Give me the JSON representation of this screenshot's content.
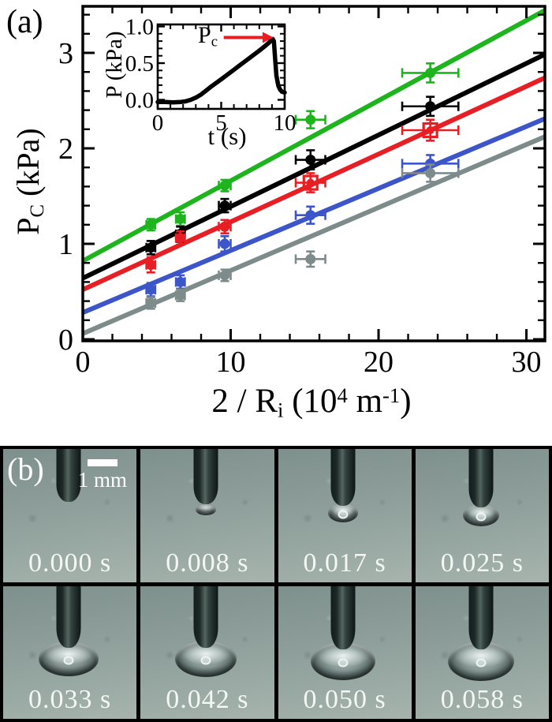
{
  "panel_a": {
    "label": "(a)",
    "ylabel": {
      "p1": "P",
      "sub": "C",
      "p2": " (kPa)"
    },
    "xlabel": {
      "p1": "2 / R",
      "sub": "i",
      "p2": " (10",
      "sup1": "4",
      "p3": " m",
      "sup2": "-1",
      "p4": ")"
    },
    "inset_ylabel": "P (kPa)",
    "inset_xlabel": "t (s)",
    "pc_annotation": {
      "p1": "P",
      "sub": "c"
    }
  },
  "chart_data": [
    {
      "type": "scatter",
      "title": "",
      "xlabel": "2 / R_i (10^4 m^-1)",
      "ylabel": "P_C (kPa)",
      "xlim": [
        0,
        31.25
      ],
      "ylim": [
        0,
        3.49
      ],
      "grid": false,
      "legend": "none",
      "x_major_ticks": [
        {
          "v": 0,
          "label": "0"
        },
        {
          "v": 10,
          "label": "10"
        },
        {
          "v": 20,
          "label": "20"
        },
        {
          "v": 30,
          "label": "30"
        }
      ],
      "x_minor_step": 2,
      "y_major_ticks": [
        {
          "v": 0,
          "label": "0"
        },
        {
          "v": 1,
          "label": "1"
        },
        {
          "v": 2,
          "label": "2"
        },
        {
          "v": 3,
          "label": "3"
        }
      ],
      "y_minor_step": 0.2,
      "x": [
        4.6,
        6.6,
        9.6,
        15.4,
        23.5
      ],
      "xerr": [
        0.3,
        0.3,
        0.4,
        1.0,
        1.9
      ],
      "series": [
        {
          "name": "green",
          "color": "#1db41d",
          "marker": "circle",
          "y": [
            1.2,
            1.26,
            1.61,
            2.3,
            2.79
          ],
          "yerr": [
            0.06,
            0.07,
            0.06,
            0.09,
            0.1
          ],
          "fit": {
            "slope": 0.084,
            "intercept": 0.82
          }
        },
        {
          "name": "black",
          "color": "#000000",
          "marker": "circle",
          "y": [
            0.96,
            1.1,
            1.4,
            1.88,
            2.44
          ],
          "yerr": [
            0.07,
            0.08,
            0.07,
            0.1,
            0.1
          ],
          "fit": {
            "slope": 0.075,
            "intercept": 0.64
          }
        },
        {
          "name": "red",
          "color": "#e81e25",
          "marker": "circle+opensquare",
          "open_square_idx": [
            3,
            4
          ],
          "y": [
            0.78,
            1.06,
            1.18,
            1.64,
            2.19
          ],
          "yerr": [
            0.08,
            0.07,
            0.07,
            0.1,
            0.11
          ],
          "fit": {
            "slope": 0.071,
            "intercept": 0.52
          }
        },
        {
          "name": "blue",
          "color": "#3c55c8",
          "marker": "circle",
          "y": [
            0.52,
            0.6,
            1.0,
            1.3,
            1.84
          ],
          "yerr": [
            0.07,
            0.07,
            0.08,
            0.09,
            0.09
          ],
          "fit": {
            "slope": 0.065,
            "intercept": 0.28
          }
        },
        {
          "name": "gray",
          "color": "#7e8b8b",
          "marker": "circle",
          "y": [
            0.38,
            0.46,
            0.67,
            0.84,
            1.74
          ],
          "yerr": [
            0.06,
            0.06,
            0.06,
            0.08,
            0.09
          ],
          "fit": {
            "slope": 0.066,
            "intercept": 0.06
          }
        }
      ]
    },
    {
      "type": "line",
      "title": "inset",
      "xlabel": "t (s)",
      "ylabel": "P (kPa)",
      "xlim": [
        0,
        10
      ],
      "ylim": [
        -0.12,
        1.03
      ],
      "x_major_ticks": [
        {
          "v": 0,
          "label": "0"
        },
        {
          "v": 5,
          "label": "5"
        },
        {
          "v": 10,
          "label": "10"
        }
      ],
      "x_minor_step": 1,
      "y_major_ticks": [
        {
          "v": 0,
          "label": "0.0"
        },
        {
          "v": 0.5,
          "label": "0.5"
        },
        {
          "v": 1,
          "label": "1.0"
        }
      ],
      "y_minor_step": 0.1,
      "line_color": "#000000",
      "curve": [
        [
          0,
          -0.03
        ],
        [
          0.6,
          -0.03
        ],
        [
          1.2,
          -0.035
        ],
        [
          1.8,
          -0.03
        ],
        [
          2.2,
          -0.02
        ],
        [
          2.6,
          0.0
        ],
        [
          3.0,
          0.03
        ],
        [
          3.4,
          0.07
        ],
        [
          3.8,
          0.125
        ],
        [
          4.2,
          0.18
        ],
        [
          4.6,
          0.23
        ],
        [
          5.0,
          0.28
        ],
        [
          5.5,
          0.345
        ],
        [
          6.0,
          0.41
        ],
        [
          6.5,
          0.475
        ],
        [
          7.0,
          0.54
        ],
        [
          7.5,
          0.605
        ],
        [
          8.0,
          0.67
        ],
        [
          8.5,
          0.74
        ],
        [
          8.8,
          0.785
        ],
        [
          9.05,
          0.83
        ],
        [
          9.15,
          0.8
        ],
        [
          9.25,
          0.56
        ],
        [
          9.35,
          0.33
        ],
        [
          9.5,
          0.19
        ],
        [
          9.65,
          0.135
        ],
        [
          9.8,
          0.11
        ],
        [
          10,
          0.1
        ]
      ],
      "annotation": {
        "text": "P_c",
        "arrow_color": "#e81e25",
        "arrow_y": 0.85,
        "arrow_x_start": 5.2,
        "arrow_x_end": 9.0,
        "peak_value": 0.83,
        "peak_t": 9.05
      }
    }
  ],
  "panel_b": {
    "label": "(b)",
    "scalebar_label": "1 mm",
    "frames": [
      {
        "time": "0.000 s",
        "needle_pct": 42,
        "bubble_rx": 0,
        "bubble_ry": 0
      },
      {
        "time": "0.008 s",
        "needle_pct": 44,
        "bubble_rx": 13,
        "bubble_ry": 7
      },
      {
        "time": "0.017 s",
        "needle_pct": 45,
        "bubble_rx": 19,
        "bubble_ry": 12
      },
      {
        "time": "0.025 s",
        "needle_pct": 46,
        "bubble_rx": 23,
        "bubble_ry": 14
      },
      {
        "time": "0.033 s",
        "needle_pct": 49,
        "bubble_rx": 38,
        "bubble_ry": 22
      },
      {
        "time": "0.042 s",
        "needle_pct": 49,
        "bubble_rx": 39,
        "bubble_ry": 23
      },
      {
        "time": "0.050 s",
        "needle_pct": 50,
        "bubble_rx": 41,
        "bubble_ry": 24
      },
      {
        "time": "0.058 s",
        "needle_pct": 50,
        "bubble_rx": 42,
        "bubble_ry": 25
      }
    ]
  }
}
